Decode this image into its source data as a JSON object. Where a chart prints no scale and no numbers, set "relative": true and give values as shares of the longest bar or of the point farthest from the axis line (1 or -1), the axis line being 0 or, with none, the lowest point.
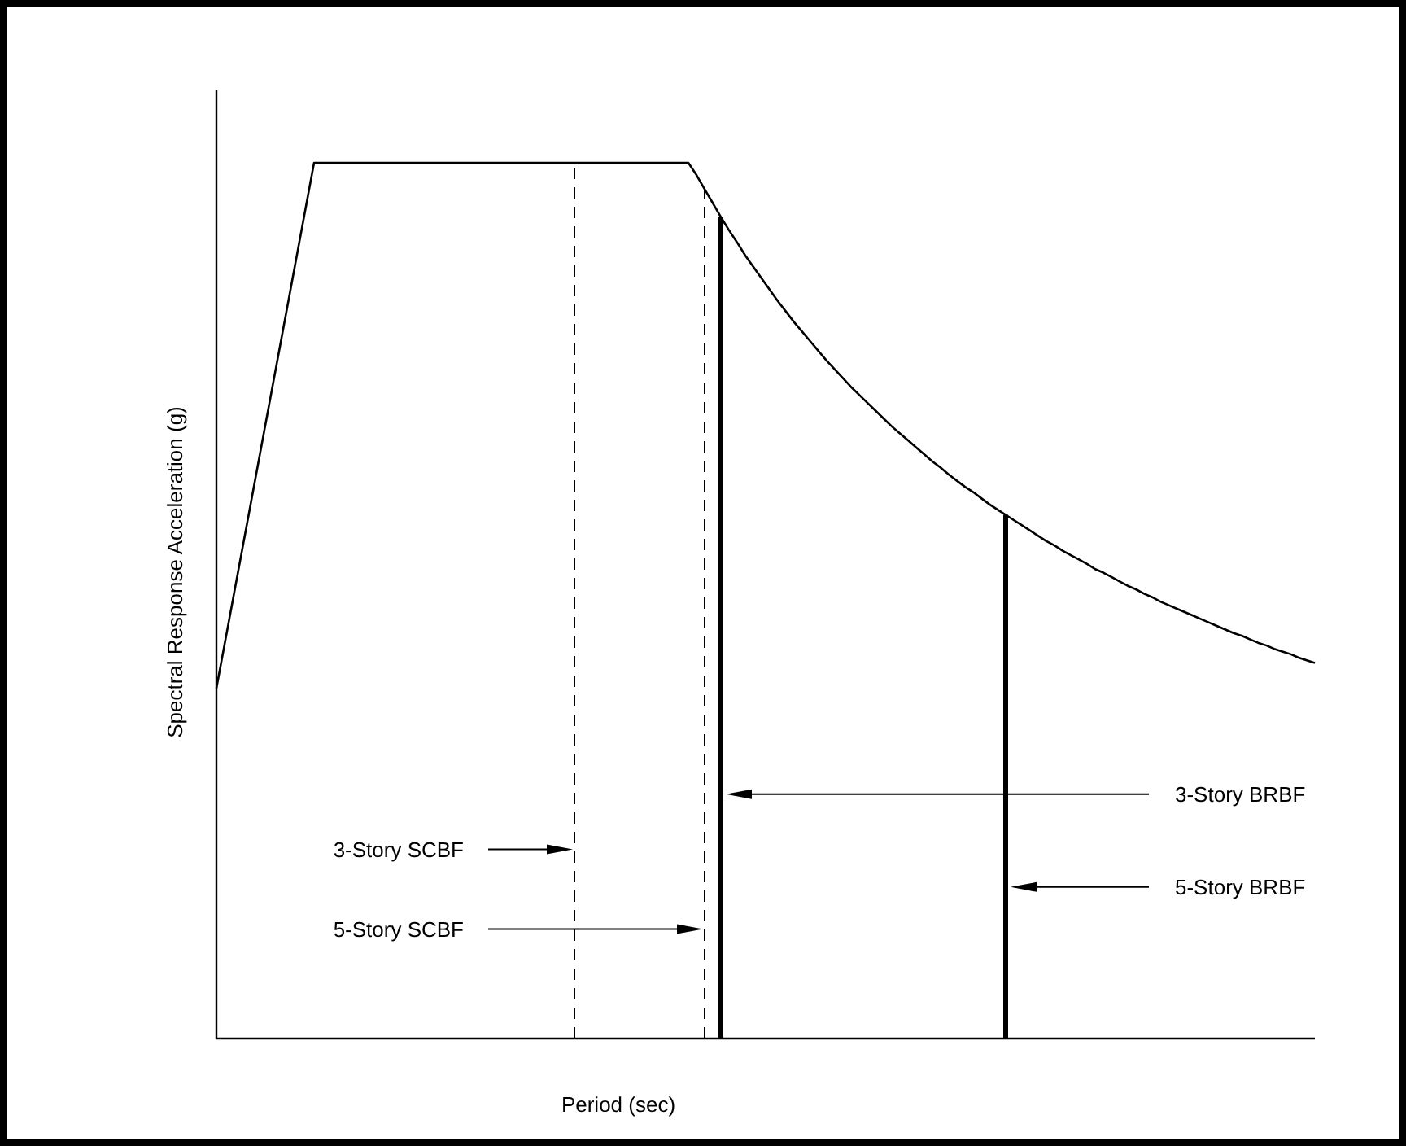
{
  "chart_data": {
    "type": "line",
    "relative": true,
    "xlabel": "Period (sec)",
    "ylabel": "Spectral Response Acceleration (g)",
    "categories": [
      null,
      null,
      null,
      null,
      null,
      null,
      null,
      null,
      null,
      null,
      null,
      null,
      null,
      null,
      null,
      null,
      null,
      null,
      null,
      null,
      null,
      null,
      null,
      null,
      null,
      null,
      null,
      null,
      null,
      null,
      null,
      null,
      null,
      null,
      null,
      null,
      null,
      null,
      null,
      null,
      null,
      null,
      null,
      null,
      null,
      null,
      null,
      null,
      null,
      null,
      null,
      null,
      null,
      null,
      null,
      null,
      null,
      null,
      null,
      null,
      null,
      null,
      null,
      null,
      null,
      null,
      null,
      null,
      null,
      null,
      null,
      null,
      null,
      null,
      null,
      null,
      null,
      null,
      null,
      null,
      null,
      null,
      null,
      null,
      null,
      null,
      null,
      null,
      null,
      null,
      null,
      null,
      null,
      null,
      null,
      null,
      null,
      null,
      null,
      null,
      null,
      null,
      null,
      null,
      null,
      null,
      null,
      null,
      null,
      null,
      null,
      null,
      null,
      null,
      null,
      null,
      null,
      null,
      null,
      null,
      null,
      null,
      null,
      null,
      null,
      null,
      null,
      null,
      null,
      null,
      null,
      null,
      null,
      null,
      null,
      null
    ],
    "series": [
      {
        "color": "#000000",
        "values": [
          0.4,
          0.45,
          0.5,
          0.55,
          0.6,
          0.65,
          0.7,
          0.75,
          0.8,
          0.85,
          0.9,
          0.95,
          1,
          1,
          1,
          1,
          1,
          1,
          1,
          1,
          1,
          1,
          1,
          1,
          1,
          1,
          1,
          1,
          1,
          1,
          1,
          1,
          1,
          1,
          1,
          1,
          1,
          1,
          1,
          1,
          1,
          1,
          1,
          1,
          1,
          1,
          1,
          1,
          1,
          1,
          1,
          1,
          1,
          1,
          1,
          1,
          1,
          1,
          1,
          0.986,
          0.97,
          0.954,
          0.938,
          0.923,
          0.909,
          0.894,
          0.881,
          0.868,
          0.855,
          0.842,
          0.83,
          0.818,
          0.807,
          0.796,
          0.785,
          0.774,
          0.764,
          0.754,
          0.744,
          0.735,
          0.726,
          0.717,
          0.708,
          0.699,
          0.691,
          0.683,
          0.675,
          0.667,
          0.659,
          0.652,
          0.644,
          0.637,
          0.63,
          0.624,
          0.617,
          0.61,
          0.604,
          0.598,
          0.592,
          0.586,
          0.58,
          0.574,
          0.568,
          0.563,
          0.557,
          0.552,
          0.547,
          0.542,
          0.536,
          0.532,
          0.527,
          0.522,
          0.517,
          0.513,
          0.508,
          0.504,
          0.499,
          0.495,
          0.491,
          0.487,
          0.483,
          0.479,
          0.475,
          0.471,
          0.467,
          0.463,
          0.46,
          0.456,
          0.452,
          0.449,
          0.445,
          0.442,
          0.439,
          0.435,
          0.432,
          0.429
        ]
      }
    ],
    "annotations": [
      "3-Story SCBF",
      "5-Story SCBF",
      "3-Story BRBF",
      "5-Story BRBF"
    ]
  }
}
